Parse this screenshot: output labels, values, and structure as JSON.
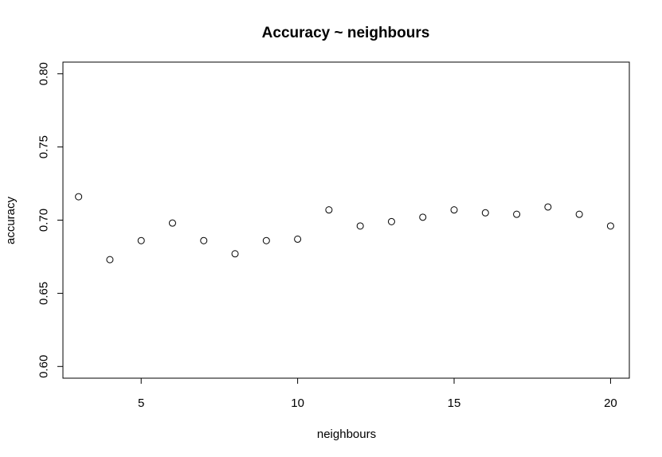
{
  "chart_data": {
    "type": "scatter",
    "title": "Accuracy ~ neighbours",
    "xlabel": "neighbours",
    "ylabel": "accuracy",
    "xlim": [
      2.5,
      20.6
    ],
    "ylim": [
      0.592,
      0.808
    ],
    "xticks": [
      5,
      10,
      15,
      20
    ],
    "yticks": [
      0.6,
      0.65,
      0.7,
      0.75,
      0.8
    ],
    "ytick_labels": [
      "0.60",
      "0.65",
      "0.70",
      "0.75",
      "0.80"
    ],
    "grid": false,
    "point_marker": "open-circle",
    "x": [
      3,
      4,
      5,
      6,
      7,
      8,
      9,
      10,
      11,
      12,
      13,
      14,
      15,
      16,
      17,
      18,
      19,
      20
    ],
    "y": [
      0.716,
      0.673,
      0.686,
      0.698,
      0.686,
      0.677,
      0.686,
      0.687,
      0.707,
      0.696,
      0.699,
      0.702,
      0.707,
      0.705,
      0.704,
      0.709,
      0.704,
      0.696
    ]
  }
}
